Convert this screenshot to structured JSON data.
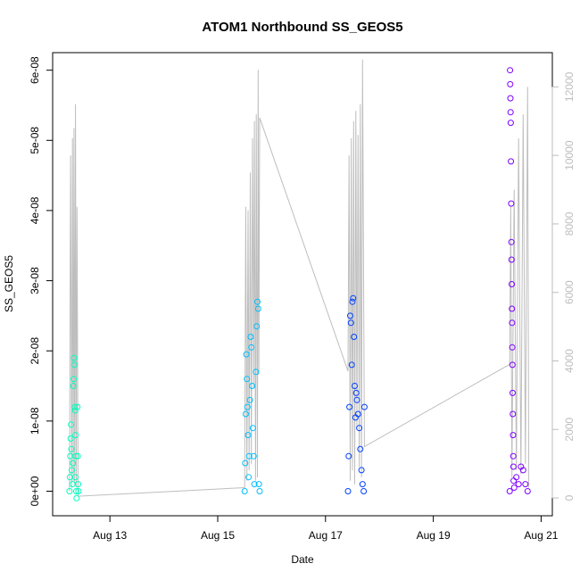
{
  "chart_data": {
    "type": "scatter",
    "title": "ATOM1 Northbound SS_GEOS5",
    "xlabel": "Date",
    "ylabel": "SS_GEOS5",
    "x_ticks": [
      "Aug 13",
      "Aug 15",
      "Aug 17",
      "Aug 19",
      "Aug 21"
    ],
    "y_left_ticks": [
      "0e+00",
      "1e-08",
      "2e-08",
      "3e-08",
      "4e-08",
      "5e-08",
      "6e-08"
    ],
    "y_right_ticks": [
      "0",
      "2000",
      "4000",
      "6000",
      "8000",
      "10000",
      "12000"
    ],
    "xlim": [
      "2016-08-11 22:30",
      "2016-08-21 05:00"
    ],
    "ylim_left": [
      -3.5e-09,
      6.25e-08
    ],
    "ylim_right": [
      -520,
      13000
    ],
    "grid": false,
    "legend": "none",
    "colors": {
      "day1": "#00ffbf",
      "day2": "#00bfff",
      "day3": "#0040ff",
      "day4": "#7f00ff",
      "altitude_line": "#bebebe"
    },
    "series": [
      {
        "color_key": "day1",
        "points": [
          [
            "2016-08-12 06:00",
            0
          ],
          [
            "2016-08-12 06:10",
            2e-09
          ],
          [
            "2016-08-12 06:20",
            5e-09
          ],
          [
            "2016-08-12 06:30",
            7.5e-09
          ],
          [
            "2016-08-12 06:40",
            9.5e-09
          ],
          [
            "2016-08-12 06:50",
            6e-09
          ],
          [
            "2016-08-12 07:00",
            3e-09
          ],
          [
            "2016-08-12 07:20",
            1e-09
          ],
          [
            "2016-08-12 07:40",
            1.5e-08
          ],
          [
            "2016-08-12 07:50",
            1.6e-08
          ],
          [
            "2016-08-12 08:00",
            1.9e-08
          ],
          [
            "2016-08-12 08:10",
            1.8e-08
          ],
          [
            "2016-08-12 08:20",
            1.2e-08
          ],
          [
            "2016-08-12 08:30",
            1.15e-08
          ],
          [
            "2016-08-12 08:40",
            8e-09
          ],
          [
            "2016-08-12 08:50",
            5e-09
          ],
          [
            "2016-08-12 09:00",
            0
          ],
          [
            "2016-08-12 09:10",
            -1e-09
          ],
          [
            "2016-08-12 09:30",
            1.2e-08
          ],
          [
            "2016-08-12 09:40",
            5e-09
          ],
          [
            "2016-08-12 09:50",
            1e-09
          ],
          [
            "2016-08-12 10:00",
            0
          ],
          [
            "2016-08-12 07:30",
            4e-09
          ],
          [
            "2016-08-12 08:35",
            2e-09
          ]
        ]
      },
      {
        "color_key": "day2",
        "points": [
          [
            "2016-08-15 12:00",
            0
          ],
          [
            "2016-08-15 12:15",
            4e-09
          ],
          [
            "2016-08-15 12:30",
            1.1e-08
          ],
          [
            "2016-08-15 12:45",
            1.95e-08
          ],
          [
            "2016-08-15 13:00",
            1.6e-08
          ],
          [
            "2016-08-15 13:15",
            1.2e-08
          ],
          [
            "2016-08-15 13:30",
            8e-09
          ],
          [
            "2016-08-15 13:45",
            2e-09
          ],
          [
            "2016-08-15 14:00",
            5e-09
          ],
          [
            "2016-08-15 14:20",
            1.3e-08
          ],
          [
            "2016-08-15 14:40",
            2.2e-08
          ],
          [
            "2016-08-15 15:00",
            2.05e-08
          ],
          [
            "2016-08-15 15:20",
            1.5e-08
          ],
          [
            "2016-08-15 15:40",
            9e-09
          ],
          [
            "2016-08-15 16:00",
            5e-09
          ],
          [
            "2016-08-15 16:20",
            1e-09
          ],
          [
            "2016-08-15 17:00",
            1.7e-08
          ],
          [
            "2016-08-15 17:20",
            2.35e-08
          ],
          [
            "2016-08-15 17:40",
            2.7e-08
          ],
          [
            "2016-08-15 18:00",
            2.6e-08
          ],
          [
            "2016-08-15 18:20",
            1e-09
          ],
          [
            "2016-08-15 18:40",
            0
          ]
        ]
      },
      {
        "color_key": "day3",
        "points": [
          [
            "2016-08-17 10:00",
            0
          ],
          [
            "2016-08-17 10:20",
            5e-09
          ],
          [
            "2016-08-17 10:40",
            1.2e-08
          ],
          [
            "2016-08-17 11:00",
            2.5e-08
          ],
          [
            "2016-08-17 11:20",
            2.4e-08
          ],
          [
            "2016-08-17 11:40",
            1.8e-08
          ],
          [
            "2016-08-17 12:00",
            2.7e-08
          ],
          [
            "2016-08-17 12:20",
            2.75e-08
          ],
          [
            "2016-08-17 12:40",
            2.2e-08
          ],
          [
            "2016-08-17 13:00",
            1.5e-08
          ],
          [
            "2016-08-17 13:20",
            1.05e-08
          ],
          [
            "2016-08-17 13:40",
            1.4e-08
          ],
          [
            "2016-08-17 14:00",
            1.3e-08
          ],
          [
            "2016-08-17 14:30",
            1.1e-08
          ],
          [
            "2016-08-17 15:00",
            9e-09
          ],
          [
            "2016-08-17 15:30",
            6e-09
          ],
          [
            "2016-08-17 16:00",
            3e-09
          ],
          [
            "2016-08-17 16:30",
            1e-09
          ],
          [
            "2016-08-17 17:00",
            0
          ],
          [
            "2016-08-17 17:20",
            1.2e-08
          ]
        ]
      },
      {
        "color_key": "day4",
        "points": [
          [
            "2016-08-20 10:00",
            0
          ],
          [
            "2016-08-20 10:10",
            6e-08
          ],
          [
            "2016-08-20 10:15",
            5.8e-08
          ],
          [
            "2016-08-20 10:20",
            5.6e-08
          ],
          [
            "2016-08-20 10:25",
            5.4e-08
          ],
          [
            "2016-08-20 10:30",
            5.25e-08
          ],
          [
            "2016-08-20 10:35",
            4.7e-08
          ],
          [
            "2016-08-20 10:40",
            4.1e-08
          ],
          [
            "2016-08-20 10:45",
            3.55e-08
          ],
          [
            "2016-08-20 10:50",
            3.3e-08
          ],
          [
            "2016-08-20 10:55",
            2.95e-08
          ],
          [
            "2016-08-20 11:00",
            2.6e-08
          ],
          [
            "2016-08-20 11:05",
            2.4e-08
          ],
          [
            "2016-08-20 11:10",
            2.05e-08
          ],
          [
            "2016-08-20 11:15",
            1.8e-08
          ],
          [
            "2016-08-20 11:20",
            1.4e-08
          ],
          [
            "2016-08-20 11:25",
            1.1e-08
          ],
          [
            "2016-08-20 11:30",
            8e-09
          ],
          [
            "2016-08-20 11:35",
            5e-09
          ],
          [
            "2016-08-20 11:40",
            3.5e-09
          ],
          [
            "2016-08-20 11:45",
            1.5e-09
          ],
          [
            "2016-08-20 12:00",
            5e-10
          ],
          [
            "2016-08-20 13:00",
            2e-09
          ],
          [
            "2016-08-20 14:00",
            1e-09
          ],
          [
            "2016-08-20 15:00",
            3.5e-09
          ],
          [
            "2016-08-20 16:00",
            3e-09
          ],
          [
            "2016-08-20 17:00",
            1e-09
          ],
          [
            "2016-08-20 18:00",
            0
          ]
        ]
      }
    ],
    "altitude_series": {
      "axis": "right",
      "points": [
        [
          "2016-08-12 06:00",
          200
        ],
        [
          "2016-08-12 06:30",
          10000
        ],
        [
          "2016-08-12 07:00",
          300
        ],
        [
          "2016-08-12 07:20",
          10500
        ],
        [
          "2016-08-12 07:40",
          500
        ],
        [
          "2016-08-12 08:00",
          10800
        ],
        [
          "2016-08-12 08:20",
          400
        ],
        [
          "2016-08-12 08:40",
          11500
        ],
        [
          "2016-08-12 09:00",
          300
        ],
        [
          "2016-08-12 09:20",
          8500
        ],
        [
          "2016-08-12 09:50",
          200
        ],
        [
          "2016-08-12 10:00",
          50
        ],
        [
          "2016-08-15 12:00",
          300
        ],
        [
          "2016-08-15 12:30",
          8500
        ],
        [
          "2016-08-15 13:00",
          500
        ],
        [
          "2016-08-15 13:30",
          8400
        ],
        [
          "2016-08-15 14:00",
          800
        ],
        [
          "2016-08-15 14:30",
          9500
        ],
        [
          "2016-08-15 15:00",
          1000
        ],
        [
          "2016-08-15 15:30",
          10500
        ],
        [
          "2016-08-15 16:00",
          3200
        ],
        [
          "2016-08-15 16:20",
          11000
        ],
        [
          "2016-08-15 16:50",
          500
        ],
        [
          "2016-08-15 17:10",
          11200
        ],
        [
          "2016-08-15 17:40",
          600
        ],
        [
          "2016-08-15 18:00",
          12500
        ],
        [
          "2016-08-15 18:20",
          3600
        ],
        [
          "2016-08-15 18:40",
          11100
        ],
        [
          "2016-08-17 10:00",
          3700
        ],
        [
          "2016-08-17 10:30",
          10000
        ],
        [
          "2016-08-17 11:00",
          500
        ],
        [
          "2016-08-17 11:30",
          10500
        ],
        [
          "2016-08-17 12:00",
          800
        ],
        [
          "2016-08-17 12:30",
          11000
        ],
        [
          "2016-08-17 13:00",
          400
        ],
        [
          "2016-08-17 13:30",
          11300
        ],
        [
          "2016-08-17 14:00",
          2000
        ],
        [
          "2016-08-17 14:30",
          10600
        ],
        [
          "2016-08-17 15:00",
          900
        ],
        [
          "2016-08-17 15:30",
          11500
        ],
        [
          "2016-08-17 16:00",
          600
        ],
        [
          "2016-08-17 16:30",
          12800
        ],
        [
          "2016-08-17 17:20",
          1500
        ],
        [
          "2016-08-20 10:00",
          3900
        ],
        [
          "2016-08-20 10:30",
          8500
        ],
        [
          "2016-08-20 11:00",
          600
        ],
        [
          "2016-08-20 12:00",
          9000
        ],
        [
          "2016-08-20 13:00",
          800
        ],
        [
          "2016-08-20 14:00",
          10500
        ],
        [
          "2016-08-20 15:00",
          700
        ],
        [
          "2016-08-20 16:00",
          11200
        ],
        [
          "2016-08-20 17:00",
          1000
        ],
        [
          "2016-08-20 18:00",
          12000
        ],
        [
          "2016-08-20 18:30",
          300
        ]
      ]
    }
  }
}
